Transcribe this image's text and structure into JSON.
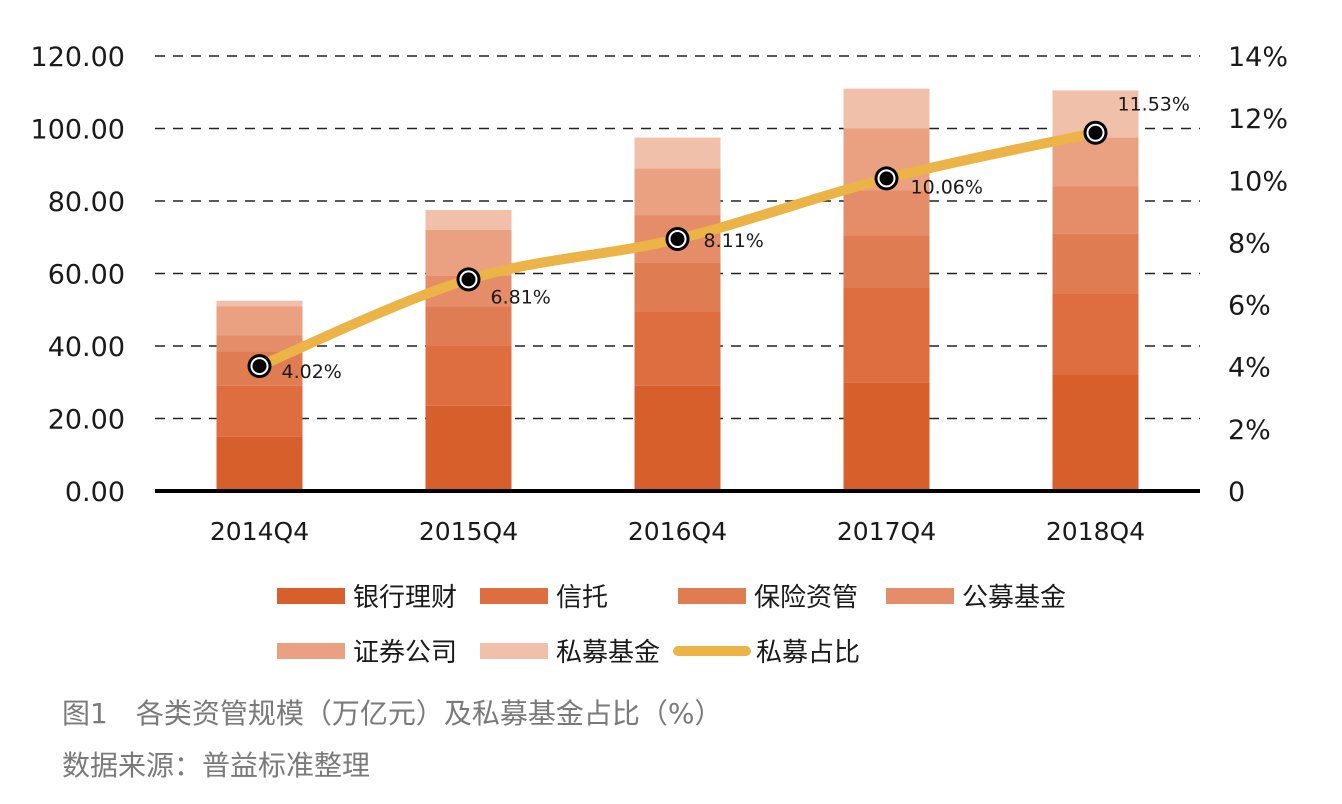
{
  "chart_data": {
    "type": "bar",
    "categories": [
      "2014Q4",
      "2015Q4",
      "2016Q4",
      "2017Q4",
      "2018Q4"
    ],
    "series": [
      {
        "name": "银行理财",
        "values": [
          15.0,
          23.5,
          29.0,
          30.0,
          32.0
        ],
        "color": "#d75f2c"
      },
      {
        "name": "信托",
        "values": [
          14.0,
          16.5,
          20.5,
          26.0,
          22.5
        ],
        "color": "#de6e40"
      },
      {
        "name": "保险资管",
        "values": [
          9.5,
          11.0,
          13.5,
          14.5,
          16.5
        ],
        "color": "#e07c52"
      },
      {
        "name": "公募基金",
        "values": [
          4.5,
          8.5,
          13.0,
          12.5,
          13.0
        ],
        "color": "#e58c68"
      },
      {
        "name": "证券公司",
        "values": [
          8.0,
          12.5,
          13.0,
          17.0,
          13.5
        ],
        "color": "#eaa182"
      },
      {
        "name": "私募基金",
        "values": [
          1.5,
          5.5,
          8.5,
          11.0,
          13.0
        ],
        "color": "#f1c0ab"
      }
    ],
    "line": {
      "name": "私募占比",
      "values": [
        4.02,
        6.81,
        8.11,
        10.06,
        11.53
      ],
      "labels": [
        "4.02%",
        "6.81%",
        "8.11%",
        "10.06%",
        "11.53%"
      ],
      "color": "#ecb347"
    },
    "left_axis": {
      "ylim": [
        0,
        120
      ],
      "ticks": [
        "0.00",
        "20.00",
        "40.00",
        "60.00",
        "80.00",
        "100.00",
        "120.00"
      ]
    },
    "right_axis": {
      "ylim": [
        0,
        14
      ],
      "ticks": [
        "0",
        "2%",
        "4%",
        "6%",
        "8%",
        "10%",
        "12%",
        "14%"
      ]
    },
    "grid": "dashed horizontal",
    "legend": {
      "placement": "bottom",
      "items": [
        "银行理财",
        "信托",
        "保险资管",
        "公募基金",
        "证券公司",
        "私募基金",
        "私募占比"
      ]
    }
  },
  "caption": {
    "title": "图1　各类资管规模（万亿元）及私募基金占比（%）",
    "source": "数据来源：普益标准整理"
  }
}
